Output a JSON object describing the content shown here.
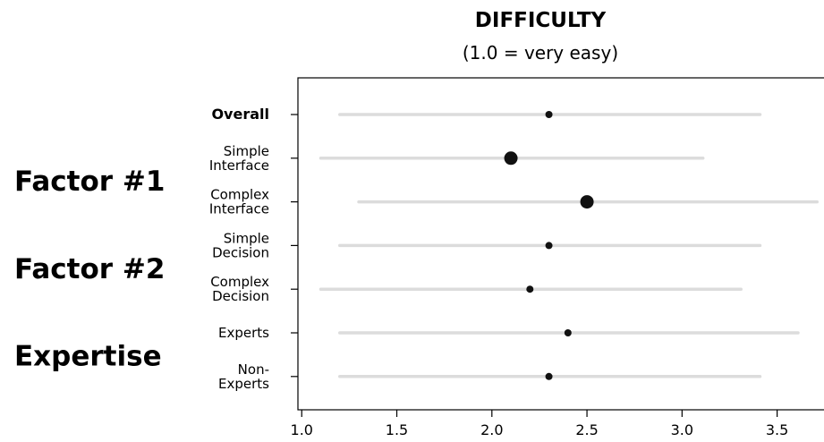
{
  "chart_data": {
    "type": "dot_range",
    "title": "DIFFICULTY",
    "subtitle": "(1.0 = very easy)",
    "xlim": [
      0.98,
      3.77
    ],
    "x_ticks": [
      1.0,
      1.5,
      2.0,
      2.5,
      3.0,
      3.5
    ],
    "x_tick_labels": [
      "1.0",
      "1.5",
      "2.0",
      "2.5",
      "3.0",
      "3.5"
    ],
    "grid": false,
    "categories": [
      {
        "label_lines": [
          "Overall"
        ],
        "bold": true,
        "value": 2.3,
        "low": 1.2,
        "high": 3.41,
        "emphasis": "small"
      },
      {
        "label_lines": [
          "Simple",
          "Interface"
        ],
        "bold": false,
        "value": 2.1,
        "low": 1.1,
        "high": 3.11,
        "emphasis": "large"
      },
      {
        "label_lines": [
          "Complex",
          "Interface"
        ],
        "bold": false,
        "value": 2.5,
        "low": 1.3,
        "high": 3.71,
        "emphasis": "large"
      },
      {
        "label_lines": [
          "Simple",
          "Decision"
        ],
        "bold": false,
        "value": 2.3,
        "low": 1.2,
        "high": 3.41,
        "emphasis": "small"
      },
      {
        "label_lines": [
          "Complex",
          "Decision"
        ],
        "bold": false,
        "value": 2.2,
        "low": 1.1,
        "high": 3.31,
        "emphasis": "small"
      },
      {
        "label_lines": [
          "Experts"
        ],
        "bold": false,
        "value": 2.4,
        "low": 1.2,
        "high": 3.61,
        "emphasis": "small"
      },
      {
        "label_lines": [
          "Non-",
          "Experts"
        ],
        "bold": false,
        "value": 2.3,
        "low": 1.2,
        "high": 3.41,
        "emphasis": "small"
      }
    ],
    "groups": [
      {
        "label": "Factor #1",
        "rows": [
          1,
          2
        ]
      },
      {
        "label": "Factor #2",
        "rows": [
          3,
          4
        ]
      },
      {
        "label": "Expertise",
        "rows": [
          5,
          6
        ]
      }
    ],
    "colors": {
      "range": "#dcdcdc",
      "dot": "#111111",
      "frame": "#000000"
    }
  }
}
